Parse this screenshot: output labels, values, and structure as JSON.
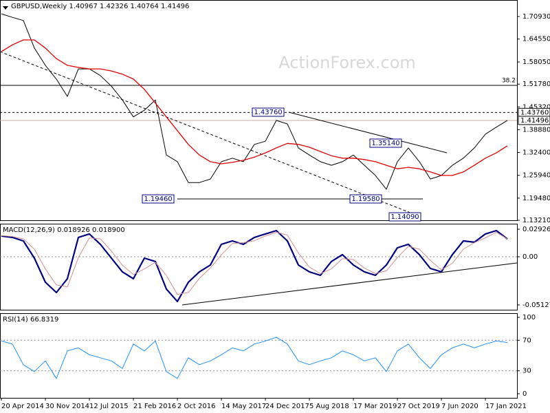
{
  "watermark": "ActionForex.com",
  "chart_data": [
    {
      "type": "line",
      "title": "GBPUSD,Weekly 1.40967 1.42326 1.40764 1.41496",
      "ylim": [
        1.1321,
        1.7561
      ],
      "yticks": [
        {
          "value": 1.7093,
          "label": "1.70930"
        },
        {
          "value": 1.6455,
          "label": "1.64550"
        },
        {
          "value": 1.5805,
          "label": "1.58050"
        },
        {
          "value": 1.5178,
          "label": "1.51780"
        },
        {
          "value": 1.4532,
          "label": "1.45320"
        },
        {
          "value": 1.3888,
          "label": "1.38880"
        },
        {
          "value": 1.324,
          "label": "1.32400"
        },
        {
          "value": 1.2594,
          "label": "1.25940"
        },
        {
          "value": 1.1948,
          "label": "1.19480"
        },
        {
          "value": 1.1321,
          "label": "1.13210"
        }
      ],
      "levels": [
        {
          "value": 1.4376,
          "label": "1.43760"
        },
        {
          "value": 1.41496,
          "label": "1.41496"
        }
      ],
      "fib_level": {
        "value": 1.5143,
        "label": "38.2"
      },
      "annotations": [
        "1.43760",
        "1.35140",
        "1.19460",
        "1.19580",
        "1.14090"
      ],
      "series": [
        {
          "name": "GBPUSD",
          "color": "#000000",
          "values": [
            1.717,
            1.707,
            1.698,
            1.62,
            1.571,
            1.532,
            1.483,
            1.561,
            1.561,
            1.542,
            1.512,
            1.473,
            1.425,
            1.444,
            1.473,
            1.317,
            1.298,
            1.239,
            1.239,
            1.249,
            1.298,
            1.308,
            1.298,
            1.347,
            1.356,
            1.415,
            1.405,
            1.337,
            1.317,
            1.298,
            1.288,
            1.298,
            1.317,
            1.288,
            1.259,
            1.22,
            1.298,
            1.337,
            1.298,
            1.249,
            1.259,
            1.288,
            1.308,
            1.337,
            1.376,
            1.396,
            1.415
          ]
        },
        {
          "name": "MA",
          "color": "#e00000",
          "values": [
            1.61,
            1.629,
            1.643,
            1.643,
            1.62,
            1.59,
            1.571,
            1.565,
            1.561,
            1.561,
            1.555,
            1.546,
            1.532,
            1.503,
            1.464,
            1.425,
            1.386,
            1.347,
            1.317,
            1.298,
            1.292,
            1.296,
            1.302,
            1.311,
            1.323,
            1.337,
            1.35,
            1.347,
            1.339,
            1.327,
            1.315,
            1.308,
            1.308,
            1.304,
            1.298,
            1.288,
            1.278,
            1.282,
            1.278,
            1.269,
            1.259,
            1.259,
            1.269,
            1.288,
            1.308,
            1.323,
            1.343
          ]
        }
      ]
    },
    {
      "type": "line",
      "title": "MACD(12,26,9) 0.018926 0.018900",
      "ylim": [
        -0.0564,
        0.0351
      ],
      "yticks": [
        0.029261,
        {
          "value": 0,
          "label": "0.00"
        },
        -0.051279
      ],
      "dashed_levels": [
        0
      ],
      "series": [
        {
          "name": "MACD",
          "color": "#000080",
          "values": [
            0.022,
            0.0205,
            0.0168,
            -0.0015,
            -0.0271,
            -0.0381,
            -0.0234,
            0.0205,
            0.0242,
            0.0132,
            -0.0015,
            -0.0161,
            -0.0234,
            -0.0015,
            -0.0051,
            -0.0344,
            -0.0476,
            -0.0271,
            -0.0161,
            -0.0088,
            0.0132,
            0.0168,
            0.0132,
            0.0205,
            0.0242,
            0.0278,
            0.0168,
            -0.0088,
            -0.0161,
            -0.0198,
            -0.0051,
            0.0022,
            -0.0088,
            -0.0161,
            -0.0198,
            -0.0088,
            0.0095,
            0.0132,
            0.0022,
            -0.0125,
            -0.0161,
            0.0022,
            0.0168,
            0.0154,
            0.0242,
            0.0278,
            0.0189
          ]
        },
        {
          "name": "Signal",
          "color": "#d09090",
          "values": [
            0.0225,
            0.0215,
            0.019,
            0.008,
            -0.013,
            -0.03,
            -0.032,
            -0.001,
            0.02,
            0.019,
            0.006,
            -0.009,
            -0.019,
            -0.013,
            -0.006,
            -0.02,
            -0.04,
            -0.038,
            -0.023,
            -0.012,
            0.002,
            0.014,
            0.015,
            0.017,
            0.022,
            0.026,
            0.023,
            0.004,
            -0.011,
            -0.018,
            -0.013,
            -0.002,
            -0.003,
            -0.012,
            -0.018,
            -0.015,
            -0.001,
            0.011,
            0.008,
            -0.004,
            -0.014,
            -0.007,
            0.008,
            0.015,
            0.02,
            0.026,
            0.0189
          ]
        }
      ]
    },
    {
      "type": "line",
      "title": "RSI(14) 66.8319",
      "ylim": [
        -5.4,
        105.4
      ],
      "yticks": [
        100,
        70,
        30,
        0
      ],
      "dashed_levels": [
        70,
        30
      ],
      "categories": [
        "20 Apr 2014",
        null,
        null,
        null,
        "30 Nov 2014",
        null,
        null,
        null,
        "12 Jul 2015",
        null,
        null,
        null,
        "21 Feb 2016",
        null,
        null,
        null,
        "2 Oct 2016",
        null,
        null,
        null,
        "14 May 2017",
        null,
        null,
        null,
        "24 Dec 2017",
        null,
        null,
        null,
        "5 Aug 2018",
        null,
        null,
        null,
        "17 Mar 2019",
        null,
        null,
        null,
        "27 Oct 2019",
        null,
        null,
        null,
        "7 Jun 2020",
        null,
        null,
        null,
        "17 Jan 2021",
        null,
        null
      ],
      "series": [
        {
          "name": "RSI",
          "color": "#1e90ff",
          "values": [
            69,
            65,
            38,
            29,
            43,
            20,
            56,
            60,
            51,
            47,
            43,
            33,
            65,
            56,
            69,
            29,
            20,
            47,
            38,
            43,
            51,
            60,
            56,
            65,
            69,
            74,
            65,
            43,
            38,
            43,
            47,
            56,
            51,
            43,
            47,
            29,
            56,
            65,
            47,
            33,
            51,
            60,
            65,
            60,
            65,
            69,
            67
          ]
        }
      ]
    }
  ]
}
